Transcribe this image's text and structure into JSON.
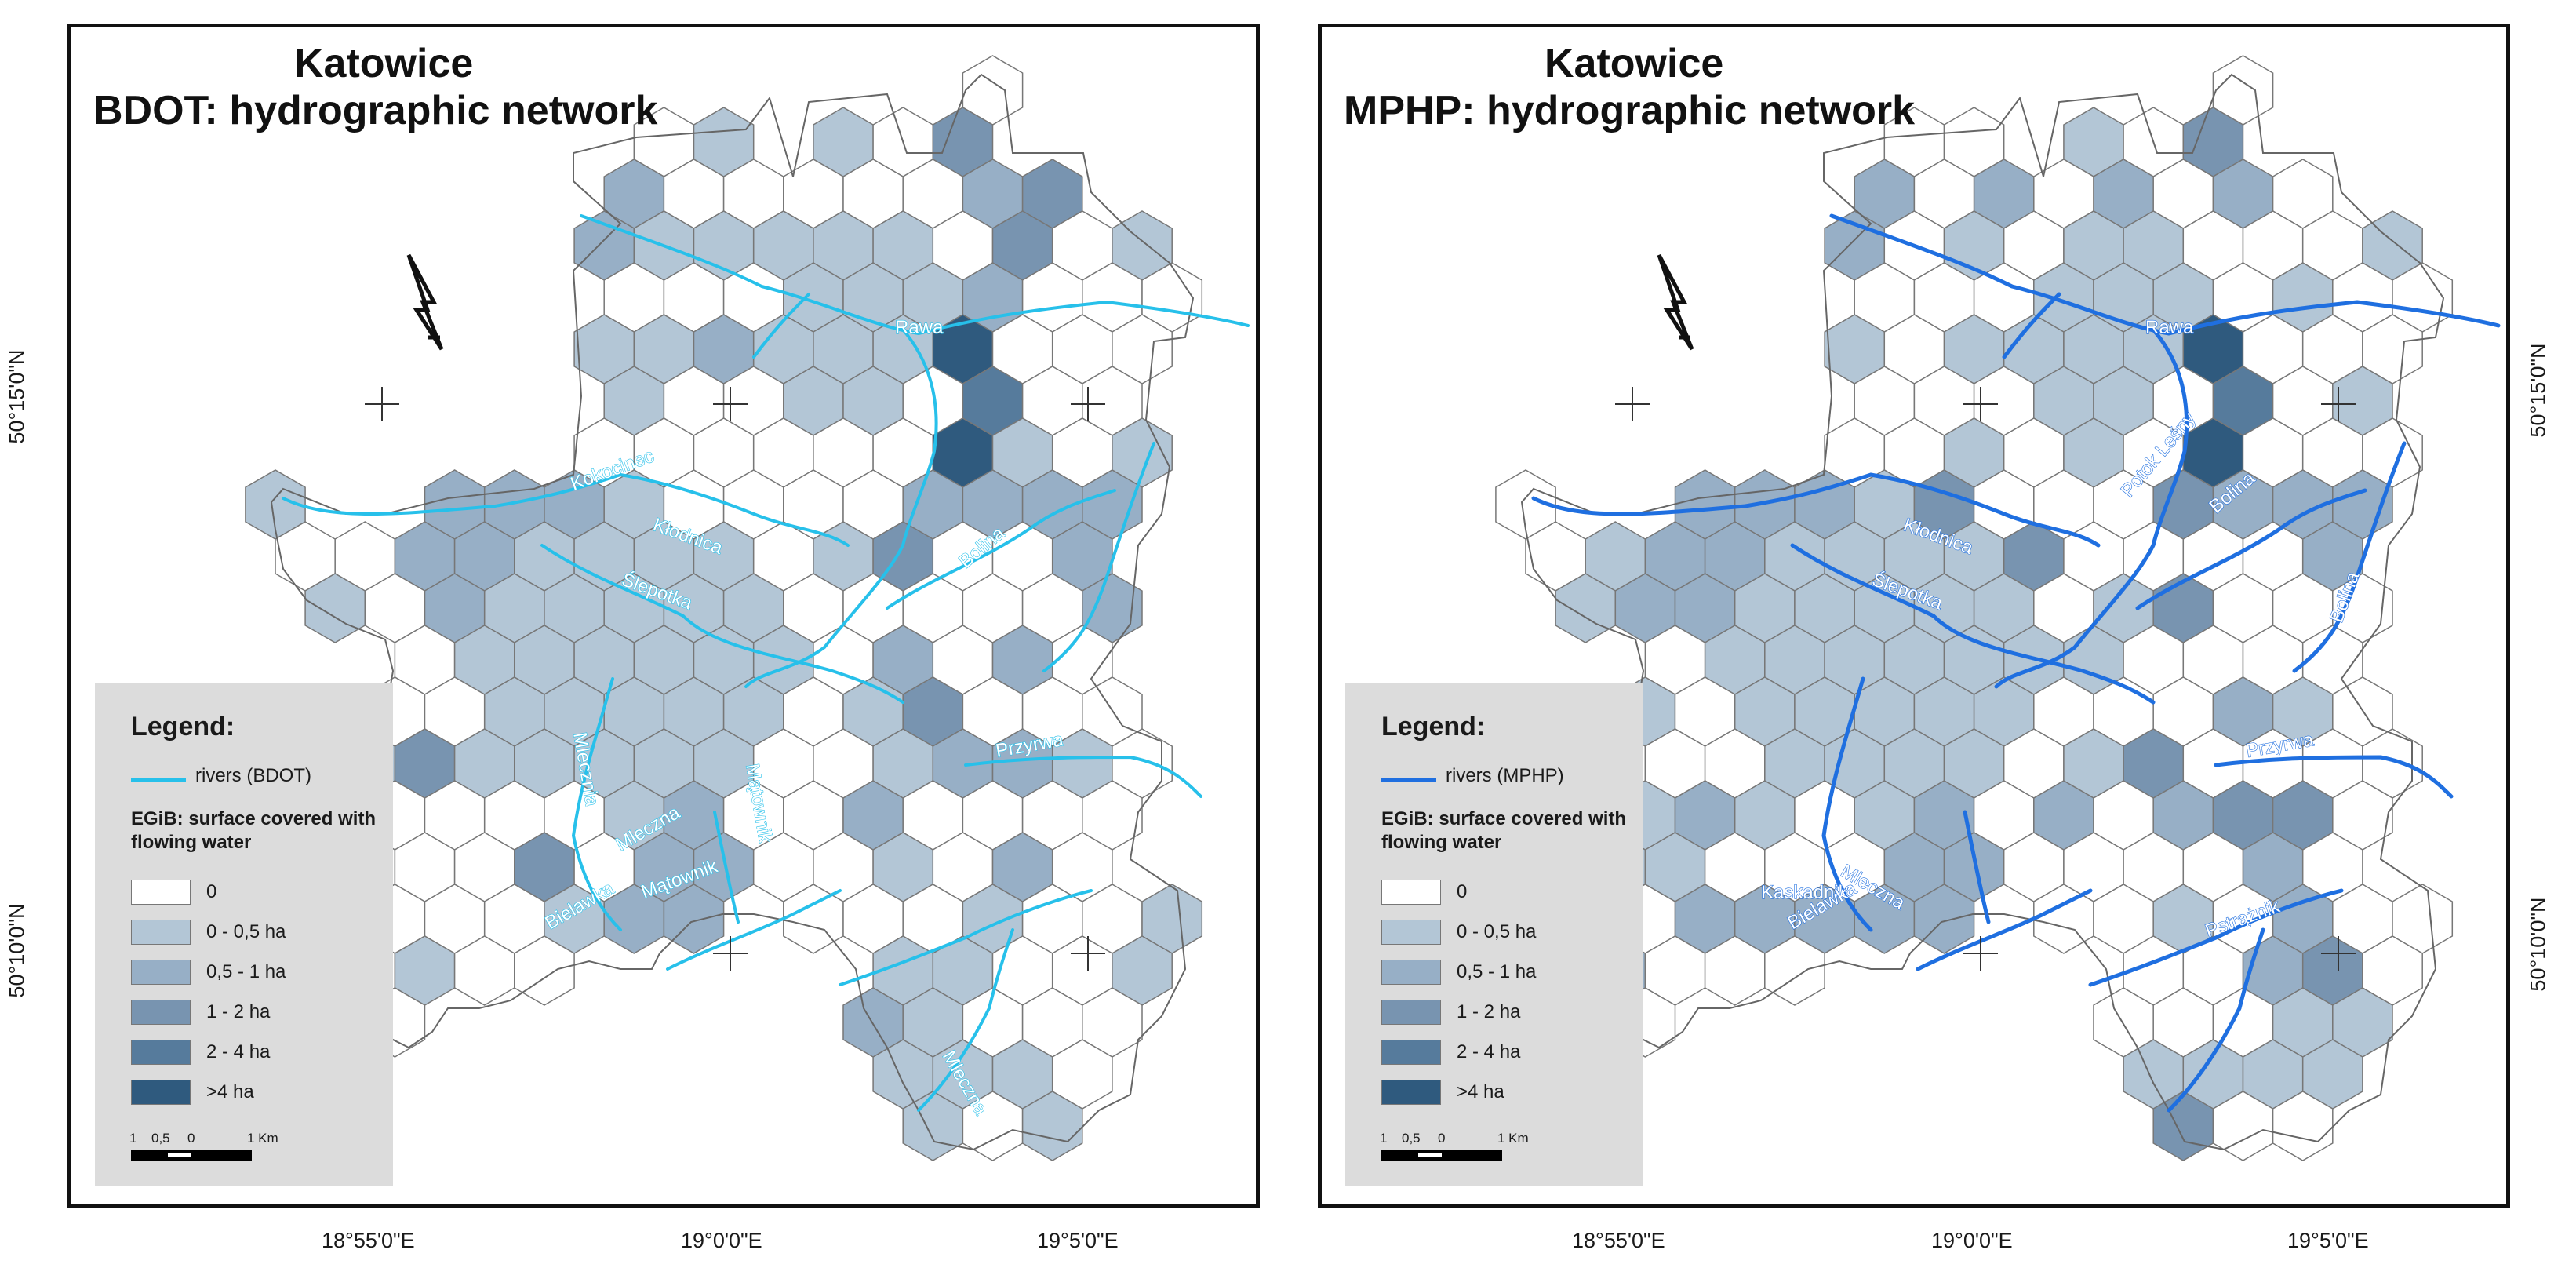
{
  "panels": [
    {
      "id": "left",
      "city": "Katowice",
      "subtitle": "BDOT:  hydrographic network",
      "river_color": "#27c0ea",
      "legend": {
        "title": "Legend:",
        "line_label": "rivers (BDOT)",
        "subtitle": "EGiB: surface covered with flowing water"
      },
      "river_labels": [
        "Rawa",
        "Kokocinec",
        "Kłodnica",
        "Ślepotka",
        "Bolina",
        "Przyrwa",
        "Mlecznia",
        "Mleczna",
        "Bielawka",
        "Mątownik",
        "Mątownik",
        "Mleczna"
      ],
      "lat_side": "left"
    },
    {
      "id": "right",
      "city": "Katowice",
      "subtitle": "MPHP:  hydrographic network",
      "river_color": "#1f6fe0",
      "legend": {
        "title": "Legend:",
        "line_label": "rivers (MPHP)",
        "subtitle": "EGiB: surface covered with flowing water"
      },
      "river_labels": [
        "Rawa",
        "Kłodnica",
        "Ślepotka",
        "Potok Leśny",
        "Bolina",
        "Bolina",
        "Przyrwa",
        "Kaskadnik",
        "Mleczna",
        "Bielawka",
        "Pstrążnik"
      ],
      "lat_side": "right"
    }
  ],
  "legend_classes": [
    {
      "label": "0",
      "color": "#ffffff"
    },
    {
      "label": "0 - 0,5 ha",
      "color": "#b3c6d6"
    },
    {
      "label": "0,5 - 1 ha",
      "color": "#97afc6"
    },
    {
      "label": "1 - 2 ha",
      "color": "#7894b0"
    },
    {
      "label": "2 - 4 ha",
      "color": "#567b9c"
    },
    {
      "label": ">4 ha",
      "color": "#2f5a7e"
    }
  ],
  "scale_bar": {
    "labels": [
      "1",
      "0,5",
      "0",
      "1 Km"
    ]
  },
  "longitude_labels": [
    "18°55'0\"E",
    "19°0'0\"E",
    "19°5'0\"E"
  ],
  "latitude_labels": [
    "50°15'0\"N",
    "50°10'0\"N"
  ]
}
